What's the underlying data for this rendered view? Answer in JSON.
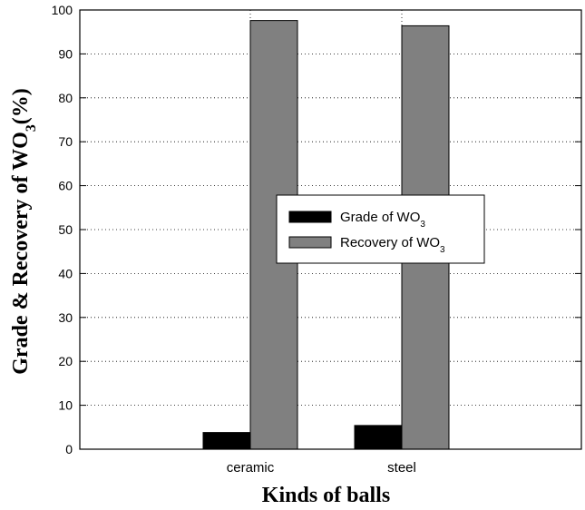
{
  "chart_data": {
    "type": "bar",
    "title": "",
    "categories": [
      "ceramic",
      "steel"
    ],
    "series": [
      {
        "name": "Grade of WO",
        "name_sub": "3",
        "values": [
          3.8,
          5.4
        ],
        "color": "#000000"
      },
      {
        "name": "Recovery of WO",
        "name_sub": "3",
        "values": [
          97.6,
          96.4
        ],
        "color": "#808080"
      }
    ],
    "xlabel": "Kinds of balls",
    "ylabel": "Grade & Recovery of WO",
    "ylabel_sub": "3",
    "ylabel_suffix": "(%)",
    "ylim": [
      0,
      100
    ],
    "yticks": [
      0,
      10,
      20,
      30,
      40,
      50,
      60,
      70,
      80,
      90,
      100
    ],
    "grid": true,
    "legend_position": "center-right"
  }
}
